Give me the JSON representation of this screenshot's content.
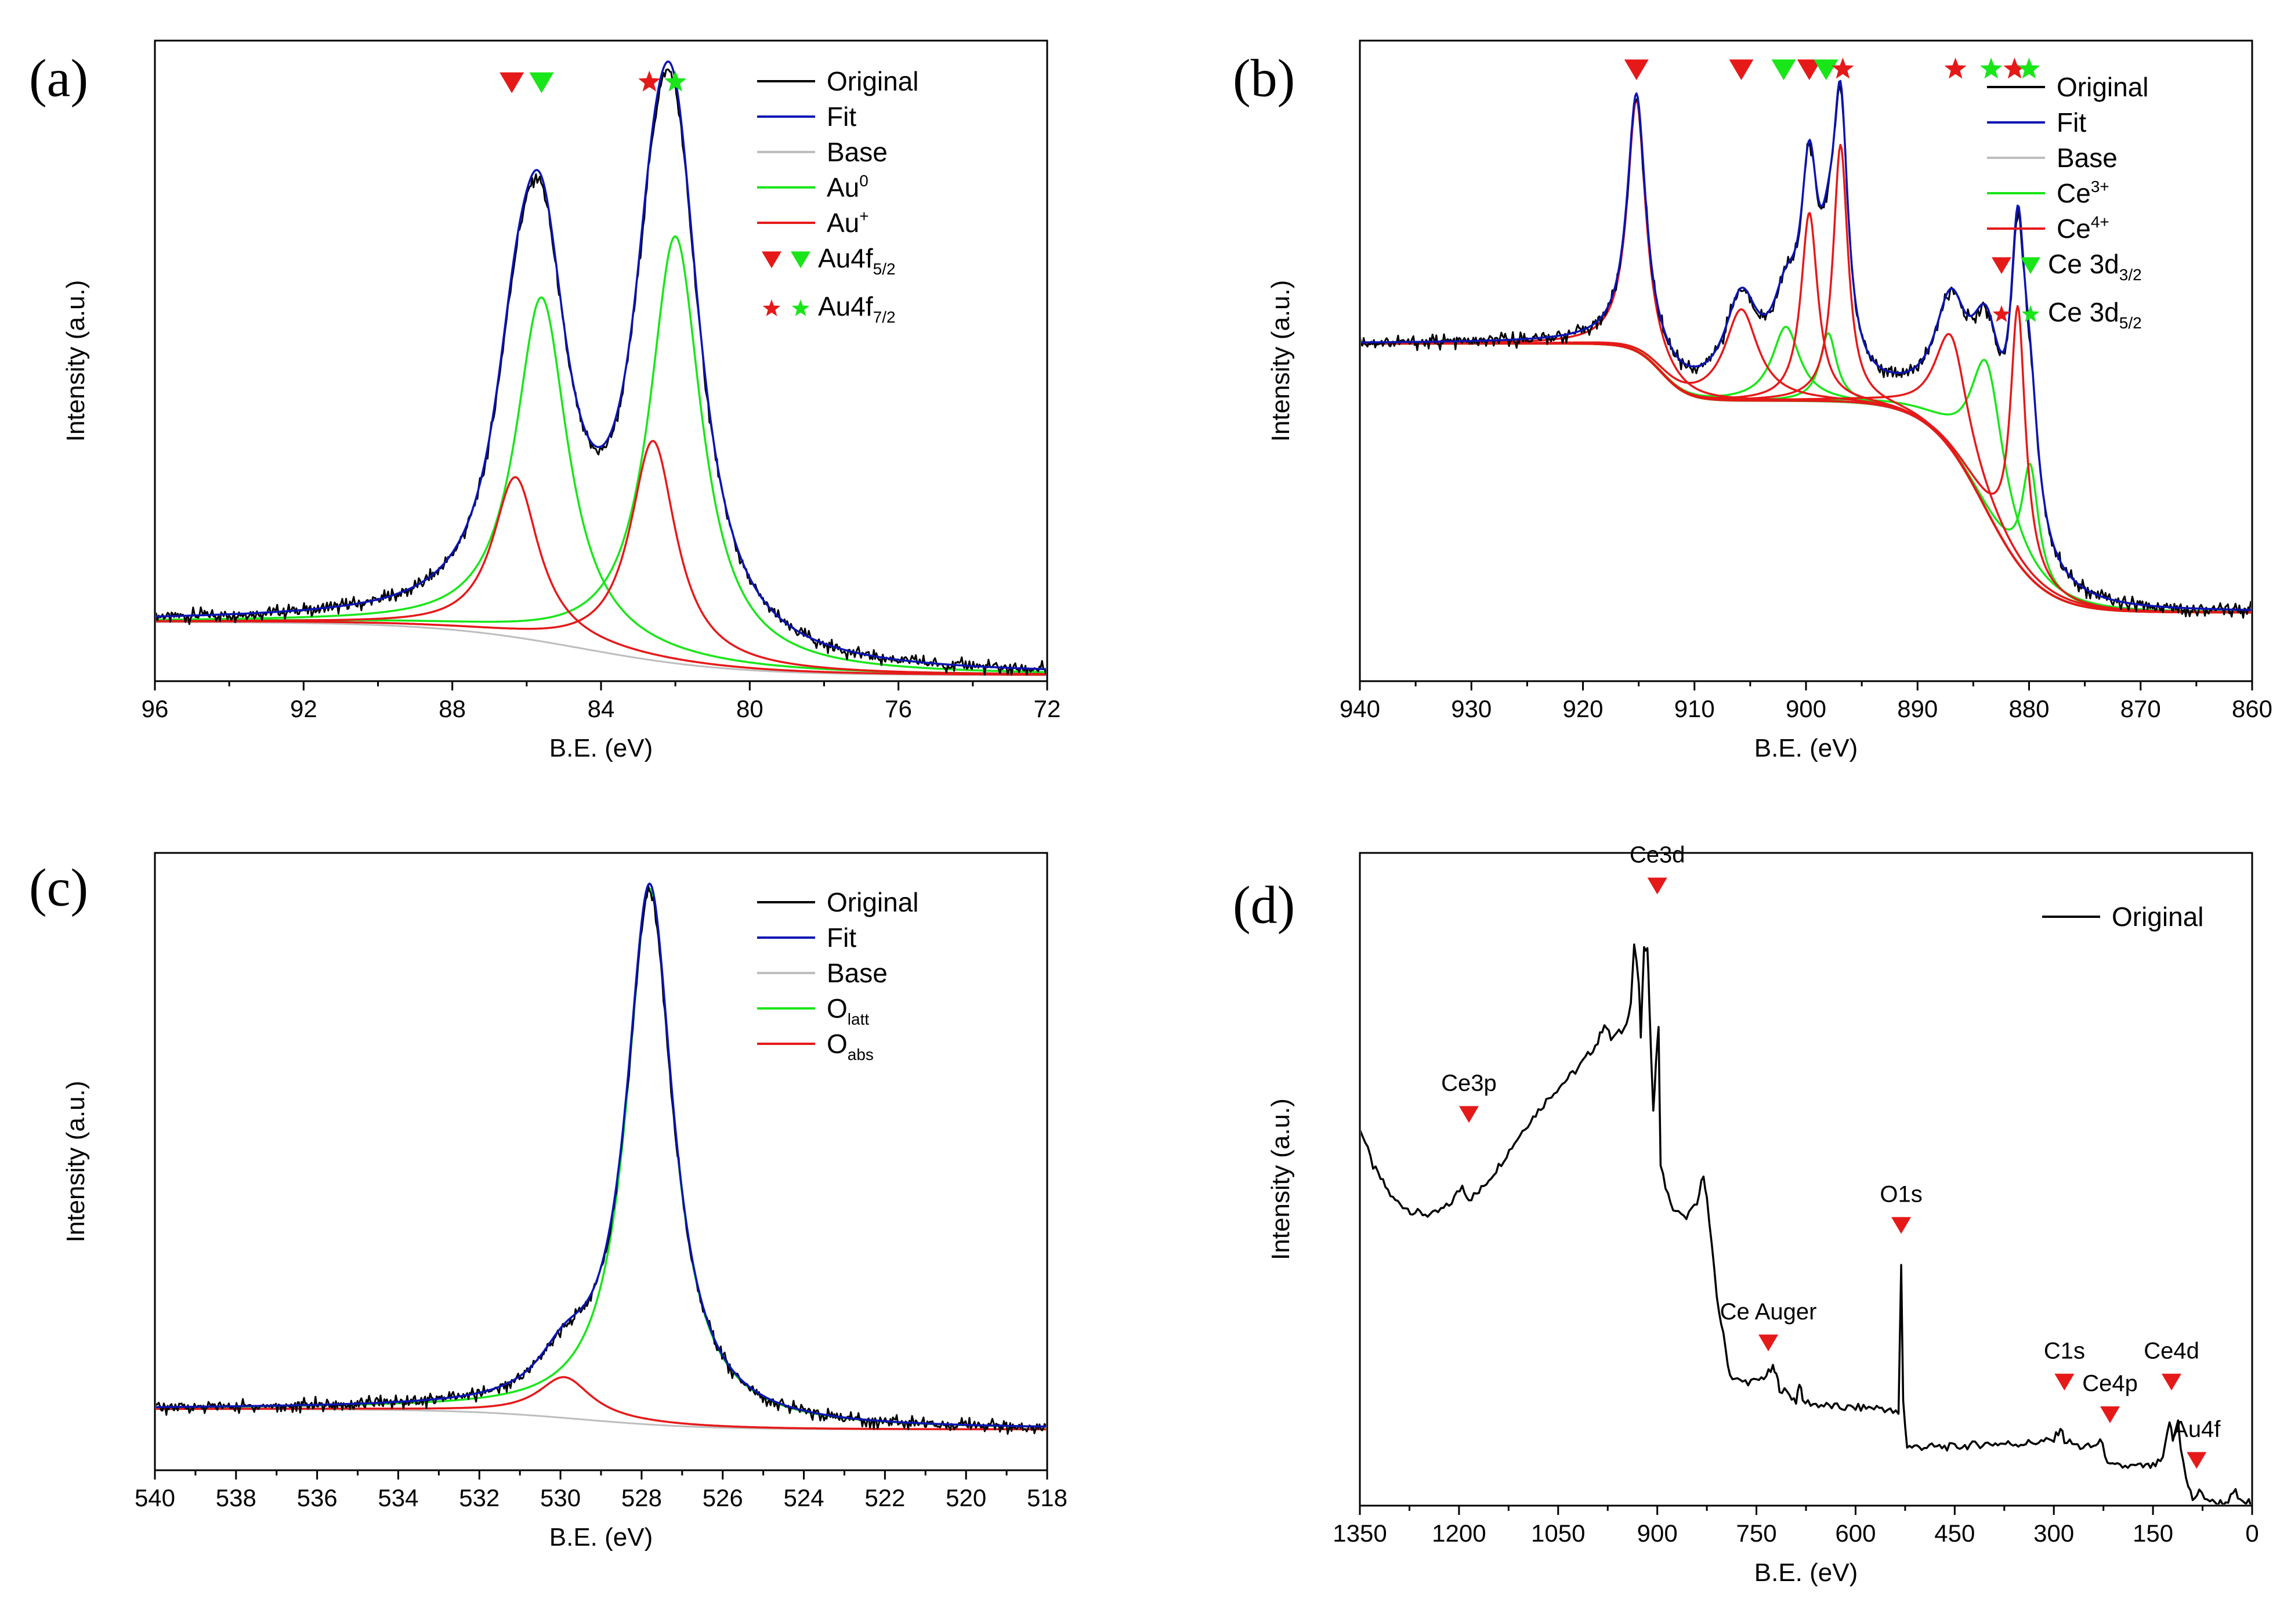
{
  "colors": {
    "original": "#000000",
    "fit": "#0a14b4",
    "base": "#bdbdbd",
    "green": "#19e619",
    "red": "#e61919"
  },
  "chart_data": [
    {
      "panel": "(a)",
      "type": "line",
      "xlabel": "B.E. (eV)",
      "ylabel": "Intensity (a.u.)",
      "xlim": [
        96,
        72
      ],
      "ylim": [
        -0.08,
        1.0
      ],
      "xticks": [
        96,
        92,
        88,
        84,
        80,
        76,
        72
      ],
      "legend": {
        "lines": [
          {
            "label": "Original",
            "color": "#000000"
          },
          {
            "label": "Fit",
            "color": "#0a14b4"
          },
          {
            "label": "Base",
            "color": "#bdbdbd"
          },
          {
            "label": "Au",
            "sup": "0",
            "color": "#19e619"
          },
          {
            "label": "Au",
            "sup": "+",
            "color": "#e61919"
          }
        ],
        "markers": [
          {
            "label": "Au4f",
            "sub": "5/2",
            "symbol": "triangle"
          },
          {
            "label": "Au4f",
            "sub": "7/2",
            "symbol": "star"
          }
        ]
      },
      "baseline": {
        "high": 0.02,
        "low": -0.07,
        "center": 84.5,
        "width": 2.0
      },
      "peaks": {
        "green": [
          {
            "x": 85.6,
            "h": 0.58,
            "w": 0.85
          },
          {
            "x": 82.0,
            "h": 0.72,
            "w": 0.85
          }
        ],
        "red": [
          {
            "x": 86.3,
            "h": 0.27,
            "w": 0.75
          },
          {
            "x": 82.6,
            "h": 0.37,
            "w": 0.75
          }
        ]
      },
      "markers": [
        {
          "symbol": "triangle",
          "color": "red",
          "x": 86.4,
          "y": 0.93
        },
        {
          "symbol": "triangle",
          "color": "green",
          "x": 85.6,
          "y": 0.93
        },
        {
          "symbol": "star",
          "color": "red",
          "x": 82.7,
          "y": 0.93
        },
        {
          "symbol": "star",
          "color": "green",
          "x": 82.0,
          "y": 0.93
        }
      ]
    },
    {
      "panel": "(b)",
      "type": "line",
      "xlabel": "B.E. (eV)",
      "ylabel": "Intensity (a.u.)",
      "xlim": [
        940,
        860
      ],
      "ylim": [
        -0.12,
        1.0
      ],
      "xticks": [
        940,
        930,
        920,
        910,
        900,
        890,
        880,
        870,
        860
      ],
      "legend": {
        "lines": [
          {
            "label": "Original",
            "color": "#000000"
          },
          {
            "label": "Fit",
            "color": "#0a14b4"
          },
          {
            "label": "Base",
            "color": "#bdbdbd"
          },
          {
            "label": "Ce",
            "sup": "3+",
            "color": "#19e619"
          },
          {
            "label": "Ce",
            "sup": "4+",
            "color": "#e61919"
          }
        ],
        "markers": [
          {
            "label": "Ce 3d",
            "sub": "3/2",
            "symbol": "triangle"
          },
          {
            "label": "Ce 3d",
            "sub": "5/2",
            "symbol": "star"
          }
        ]
      },
      "baseline_steps": [
        {
          "high": 0.47,
          "low": 0.37,
          "center": 913,
          "width": 1.2
        },
        {
          "high": 0.37,
          "low": 0.0,
          "center": 884,
          "width": 2.5
        }
      ],
      "peaks": {
        "green": [
          {
            "x": 901.8,
            "h": 0.13,
            "w": 1.5
          },
          {
            "x": 898.0,
            "h": 0.12,
            "w": 0.9
          },
          {
            "x": 883.8,
            "h": 0.26,
            "w": 1.8
          },
          {
            "x": 879.9,
            "h": 0.2,
            "w": 0.9
          }
        ],
        "red": [
          {
            "x": 915.2,
            "h": 0.44,
            "w": 1.0
          },
          {
            "x": 905.8,
            "h": 0.16,
            "w": 1.8
          },
          {
            "x": 899.7,
            "h": 0.33,
            "w": 0.9
          },
          {
            "x": 896.9,
            "h": 0.45,
            "w": 0.8
          },
          {
            "x": 887.0,
            "h": 0.2,
            "w": 1.8
          },
          {
            "x": 881.0,
            "h": 0.45,
            "w": 0.8
          }
        ]
      },
      "markers": [
        {
          "symbol": "triangle",
          "color": "red",
          "x": 915.2,
          "y": 0.95
        },
        {
          "symbol": "triangle",
          "color": "red",
          "x": 905.8,
          "y": 0.95
        },
        {
          "symbol": "triangle",
          "color": "green",
          "x": 902.0,
          "y": 0.95
        },
        {
          "symbol": "triangle",
          "color": "red",
          "x": 899.7,
          "y": 0.95
        },
        {
          "symbol": "triangle",
          "color": "green",
          "x": 898.2,
          "y": 0.95
        },
        {
          "symbol": "star",
          "color": "red",
          "x": 896.7,
          "y": 0.95
        },
        {
          "symbol": "star",
          "color": "red",
          "x": 886.6,
          "y": 0.95
        },
        {
          "symbol": "star",
          "color": "green",
          "x": 883.4,
          "y": 0.95
        },
        {
          "symbol": "star",
          "color": "red",
          "x": 881.3,
          "y": 0.95
        },
        {
          "symbol": "star",
          "color": "green",
          "x": 880.0,
          "y": 0.95
        }
      ]
    },
    {
      "panel": "(c)",
      "type": "line",
      "xlabel": "B.E. (eV)",
      "ylabel": "Intensity (a.u.)",
      "xlim": [
        540,
        518
      ],
      "ylim": [
        -0.06,
        1.0
      ],
      "xticks": [
        540,
        538,
        536,
        534,
        532,
        530,
        528,
        526,
        524,
        522,
        520,
        518
      ],
      "legend": {
        "lines": [
          {
            "label": "Original",
            "color": "#000000"
          },
          {
            "label": "Fit",
            "color": "#0a14b4"
          },
          {
            "label": "Base",
            "color": "#bdbdbd"
          },
          {
            "label": "O",
            "sub": "latt",
            "color": "#19e619"
          },
          {
            "label": "O",
            "sub": "abs",
            "color": "#e61919"
          }
        ],
        "markers": []
      },
      "baseline": {
        "high": 0.045,
        "low": 0.01,
        "center": 529.5,
        "width": 1.5
      },
      "peaks": {
        "green": [
          {
            "x": 527.8,
            "h": 0.92,
            "w": 0.7
          }
        ],
        "red": [
          {
            "x": 529.9,
            "h": 0.07,
            "w": 0.8
          }
        ]
      },
      "markers": []
    },
    {
      "panel": "(d)",
      "type": "line",
      "xlabel": "B.E. (eV)",
      "ylabel": "Intensity (a.u.)",
      "xlim": [
        1350,
        0
      ],
      "ylim": [
        0,
        1.0
      ],
      "xticks": [
        1350,
        1200,
        1050,
        900,
        750,
        600,
        450,
        300,
        150,
        0
      ],
      "legend": {
        "lines": [
          {
            "label": "Original",
            "color": "#000000"
          }
        ],
        "markers": []
      },
      "series_points": [
        [
          1350,
          0.58
        ],
        [
          1330,
          0.52
        ],
        [
          1300,
          0.47
        ],
        [
          1270,
          0.45
        ],
        [
          1240,
          0.445
        ],
        [
          1215,
          0.46
        ],
        [
          1195,
          0.49
        ],
        [
          1185,
          0.47
        ],
        [
          1170,
          0.48
        ],
        [
          1140,
          0.52
        ],
        [
          1100,
          0.58
        ],
        [
          1060,
          0.63
        ],
        [
          1020,
          0.67
        ],
        [
          990,
          0.71
        ],
        [
          980,
          0.74
        ],
        [
          970,
          0.715
        ],
        [
          950,
          0.73
        ],
        [
          940,
          0.77
        ],
        [
          935,
          0.86
        ],
        [
          928,
          0.8
        ],
        [
          925,
          0.72
        ],
        [
          920,
          0.85
        ],
        [
          915,
          0.86
        ],
        [
          912,
          0.77
        ],
        [
          906,
          0.6
        ],
        [
          902,
          0.68
        ],
        [
          898,
          0.73
        ],
        [
          895,
          0.52
        ],
        [
          880,
          0.46
        ],
        [
          860,
          0.44
        ],
        [
          840,
          0.46
        ],
        [
          830,
          0.51
        ],
        [
          825,
          0.47
        ],
        [
          810,
          0.32
        ],
        [
          800,
          0.26
        ],
        [
          790,
          0.2
        ],
        [
          775,
          0.19
        ],
        [
          750,
          0.19
        ],
        [
          735,
          0.2
        ],
        [
          725,
          0.21
        ],
        [
          720,
          0.2
        ],
        [
          715,
          0.18
        ],
        [
          700,
          0.17
        ],
        [
          690,
          0.16
        ],
        [
          685,
          0.19
        ],
        [
          680,
          0.16
        ],
        [
          660,
          0.155
        ],
        [
          620,
          0.15
        ],
        [
          560,
          0.15
        ],
        [
          535,
          0.14
        ],
        [
          531,
          0.37
        ],
        [
          528,
          0.16
        ],
        [
          522,
          0.09
        ],
        [
          500,
          0.09
        ],
        [
          450,
          0.09
        ],
        [
          400,
          0.095
        ],
        [
          350,
          0.095
        ],
        [
          300,
          0.1
        ],
        [
          290,
          0.12
        ],
        [
          284,
          0.1
        ],
        [
          260,
          0.09
        ],
        [
          240,
          0.09
        ],
        [
          230,
          0.1
        ],
        [
          215,
          0.06
        ],
        [
          200,
          0.06
        ],
        [
          180,
          0.06
        ],
        [
          150,
          0.06
        ],
        [
          135,
          0.07
        ],
        [
          125,
          0.13
        ],
        [
          120,
          0.1
        ],
        [
          112,
          0.13
        ],
        [
          108,
          0.09
        ],
        [
          100,
          0.04
        ],
        [
          90,
          0.01
        ],
        [
          80,
          0.02
        ],
        [
          60,
          0.005
        ],
        [
          40,
          0.005
        ],
        [
          25,
          0.02
        ],
        [
          18,
          0.005
        ],
        [
          5,
          0.005
        ],
        [
          0,
          0.0
        ]
      ],
      "annotations": [
        {
          "label": "Ce3d",
          "x": 900,
          "y": 0.95
        },
        {
          "label": "Ce3p",
          "x": 1185,
          "y": 0.6
        },
        {
          "label": "O1s",
          "x": 531,
          "y": 0.43
        },
        {
          "label": "Ce Auger",
          "x": 732,
          "y": 0.25
        },
        {
          "label": "C1s",
          "x": 284,
          "y": 0.19
        },
        {
          "label": "Ce4p",
          "x": 215,
          "y": 0.14
        },
        {
          "label": "Ce4d",
          "x": 122,
          "y": 0.19
        },
        {
          "label": "Au4f",
          "x": 84,
          "y": 0.07
        }
      ]
    }
  ]
}
